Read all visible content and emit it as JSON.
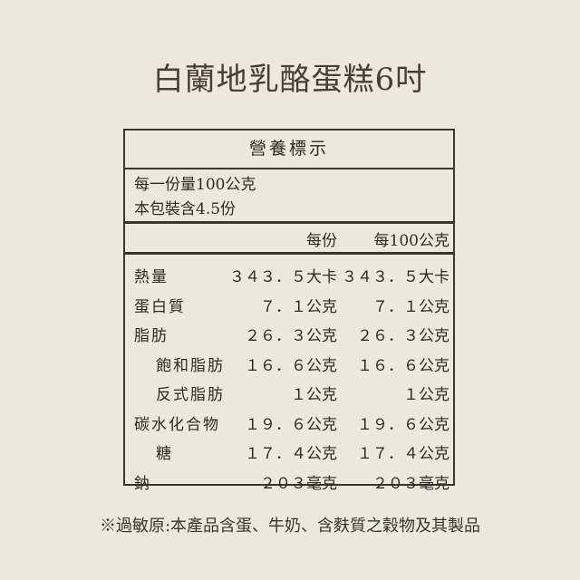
{
  "title": "白蘭地乳酪蛋糕6吋",
  "label": {
    "heading": "營養標示",
    "serving_size": "每一份量100公克",
    "servings_per_package": "本包裝含4.5份",
    "col_per_serving": "每份",
    "col_per_100g": "每100公克",
    "rows": [
      {
        "name": "熱量",
        "per_serving": "３４３．５大卡",
        "per_100g": "３４３．５大卡",
        "indent": false
      },
      {
        "name": "蛋白質",
        "per_serving": "７．１公克",
        "per_100g": "７．１公克",
        "indent": false
      },
      {
        "name": "脂肪",
        "per_serving": "２６．３公克",
        "per_100g": "２６．３公克",
        "indent": false
      },
      {
        "name": "飽和脂肪",
        "per_serving": "１６．６公克",
        "per_100g": "１６．６公克",
        "indent": true
      },
      {
        "name": "反式脂肪",
        "per_serving": "１公克",
        "per_100g": "１公克",
        "indent": true
      },
      {
        "name": "碳水化合物",
        "per_serving": "１９．６公克",
        "per_100g": "１９．６公克",
        "indent": false
      },
      {
        "name": "糖",
        "per_serving": "１７．４公克",
        "per_100g": "１７．４公克",
        "indent": true
      },
      {
        "name": "鈉",
        "per_serving": "２０３毫克",
        "per_100g": "２０３毫克",
        "indent": false
      }
    ]
  },
  "allergen_note": "※過敏原:本產品含蛋、牛奶、含麩質之穀物及其製品"
}
